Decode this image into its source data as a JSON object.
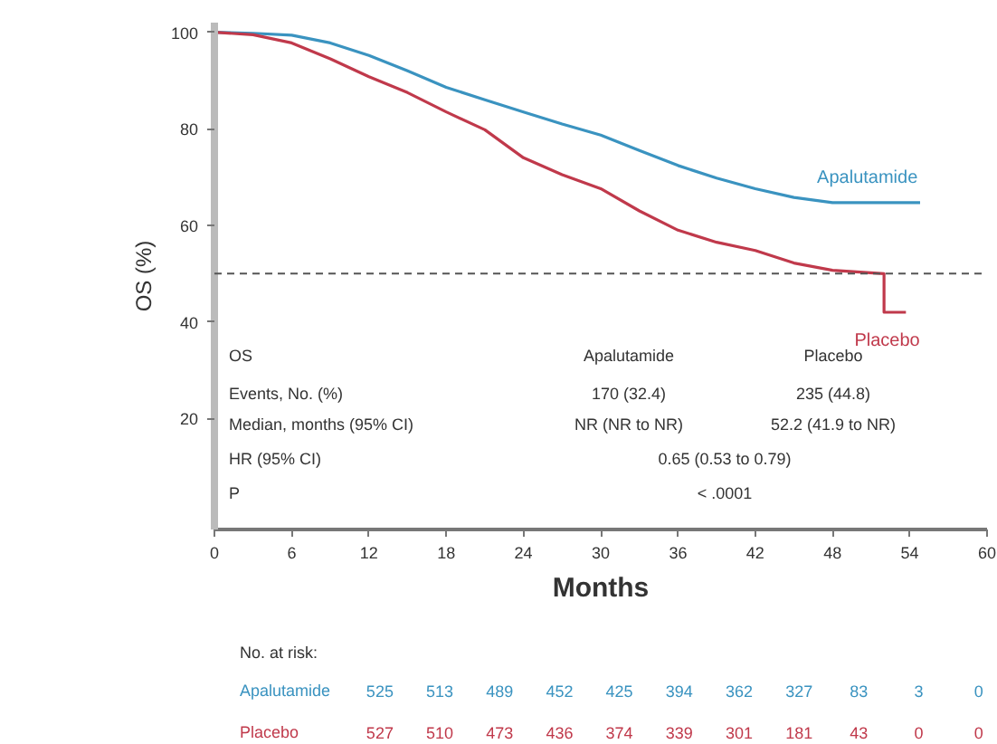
{
  "chart_data": {
    "type": "line",
    "xlabel": "Months",
    "ylabel": "OS (%)",
    "xlim": [
      0,
      60
    ],
    "xticks": [
      0,
      6,
      12,
      18,
      24,
      30,
      36,
      42,
      48,
      54,
      60
    ],
    "ylim": [
      -3,
      102
    ],
    "yticks": [
      20,
      40,
      60,
      80,
      100
    ],
    "grid": false,
    "line_style": "solid",
    "series": [
      {
        "name": "Apalutamide",
        "color": "#3a93c0",
        "x": [
          0,
          3,
          6,
          9,
          12,
          15,
          18,
          21,
          24,
          27,
          30,
          33,
          36,
          39,
          42,
          45,
          48,
          51,
          54.8
        ],
        "values": [
          100,
          99.8,
          99.4,
          97.8,
          95.2,
          92,
          88.6,
          86,
          83.5,
          81,
          78.7,
          75.5,
          72.4,
          69.8,
          67.6,
          65.8,
          64.7,
          64.7,
          64.7
        ]
      },
      {
        "name": "Placebo",
        "color": "#c0394b",
        "x": [
          0,
          3,
          6,
          9,
          12,
          15,
          18,
          21,
          24,
          27,
          30,
          33,
          36,
          39,
          42,
          45,
          48,
          52,
          52,
          53.7
        ],
        "values": [
          100,
          99.5,
          97.8,
          94.5,
          90.8,
          87.5,
          83.5,
          79.8,
          74,
          70.5,
          67.6,
          63,
          59,
          56.5,
          54.8,
          52.2,
          50.7,
          50,
          42,
          42
        ]
      }
    ],
    "ref_lines": [
      {
        "axis": "y",
        "value": 50,
        "color": "#555555",
        "line_style": "dashed"
      }
    ],
    "annotations": [
      "OS",
      "Apalutamide",
      "Placebo",
      "Events, No. (%)",
      "170 (32.4)",
      "235 (44.8)",
      "Median, months (95% CI)",
      "NR (NR to NR)",
      "52.2 (41.9 to NR)",
      "HR (95% CI)",
      "0.65 (0.53 to 0.79)",
      "P",
      "< .0001",
      "No. at risk:",
      "Apalutamide",
      "525",
      "513",
      "489",
      "452",
      "425",
      "394",
      "362",
      "327",
      "83",
      "3",
      "0",
      "Placebo",
      "527",
      "510",
      "473",
      "436",
      "374",
      "339",
      "301",
      "181",
      "43",
      "0",
      "0"
    ]
  }
}
